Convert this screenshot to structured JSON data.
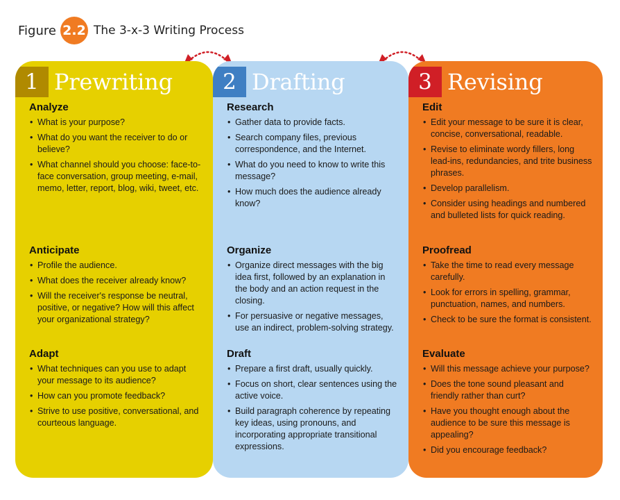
{
  "figure": {
    "label": "Figure",
    "number": "2.2",
    "title": "The 3-x-3 Writing Process",
    "accent_color": "#f07b22"
  },
  "columns": [
    {
      "number": "1",
      "title": "Prewriting",
      "color": "#e6d000",
      "number_color": "#b08a00",
      "sections": [
        {
          "title": "Analyze",
          "items": [
            "What is your purpose?",
            "What do you want the receiver to do or believe?",
            "What channel should you choose: face-to-face conversation, group meeting, e-mail, memo, letter, report, blog, wiki, tweet, etc."
          ]
        },
        {
          "title": "Anticipate",
          "items": [
            "Profile the audience.",
            "What does the receiver already know?",
            "Will the receiver's response be neutral, positive, or negative? How will this affect your organizational strategy?"
          ]
        },
        {
          "title": "Adapt",
          "items": [
            "What techniques can you use to adapt your message to its audience?",
            "How can you promote feedback?",
            "Strive to use positive, conversational, and courteous language."
          ]
        }
      ]
    },
    {
      "number": "2",
      "title": "Drafting",
      "color": "#b7d7f2",
      "number_color": "#3f7fc3",
      "sections": [
        {
          "title": "Research",
          "items": [
            "Gather data to provide facts.",
            "Search company files, previous correspondence, and the Internet.",
            "What do you need to know to write this message?",
            "How much does the audience already know?"
          ]
        },
        {
          "title": "Organize",
          "items": [
            "Organize direct messages with the big idea first, followed by an explanation in the body and an action request in the closing.",
            "For persuasive or negative messages, use an indirect, problem-solving strategy."
          ]
        },
        {
          "title": "Draft",
          "items": [
            "Prepare a first draft, usually quickly.",
            "Focus on short, clear sentences using the active voice.",
            "Build paragraph coherence by repeating key ideas, using pronouns, and incorporating appropriate transitional expressions."
          ]
        }
      ]
    },
    {
      "number": "3",
      "title": "Revising",
      "color": "#f07b22",
      "number_color": "#d01f26",
      "sections": [
        {
          "title": "Edit",
          "items": [
            "Edit your message to be sure it is clear, concise, conversational, readable.",
            "Revise to eliminate wordy fillers, long lead-ins, redundancies, and trite business phrases.",
            "Develop parallelism.",
            "Consider using headings and numbered and bulleted lists for quick reading."
          ]
        },
        {
          "title": "Proofread",
          "items": [
            "Take the time to read every message carefully.",
            "Look for errors in spelling, grammar, punctuation, names, and numbers.",
            "Check to be sure the format is consistent."
          ]
        },
        {
          "title": "Evaluate",
          "items": [
            "Will this message achieve your purpose?",
            "Does the tone sound pleasant and friendly rather than curt?",
            "Have you thought enough about the audience to be sure this message is appealing?",
            "Did you encourage feedback?"
          ]
        }
      ]
    }
  ],
  "connector_color": "#d01f26"
}
